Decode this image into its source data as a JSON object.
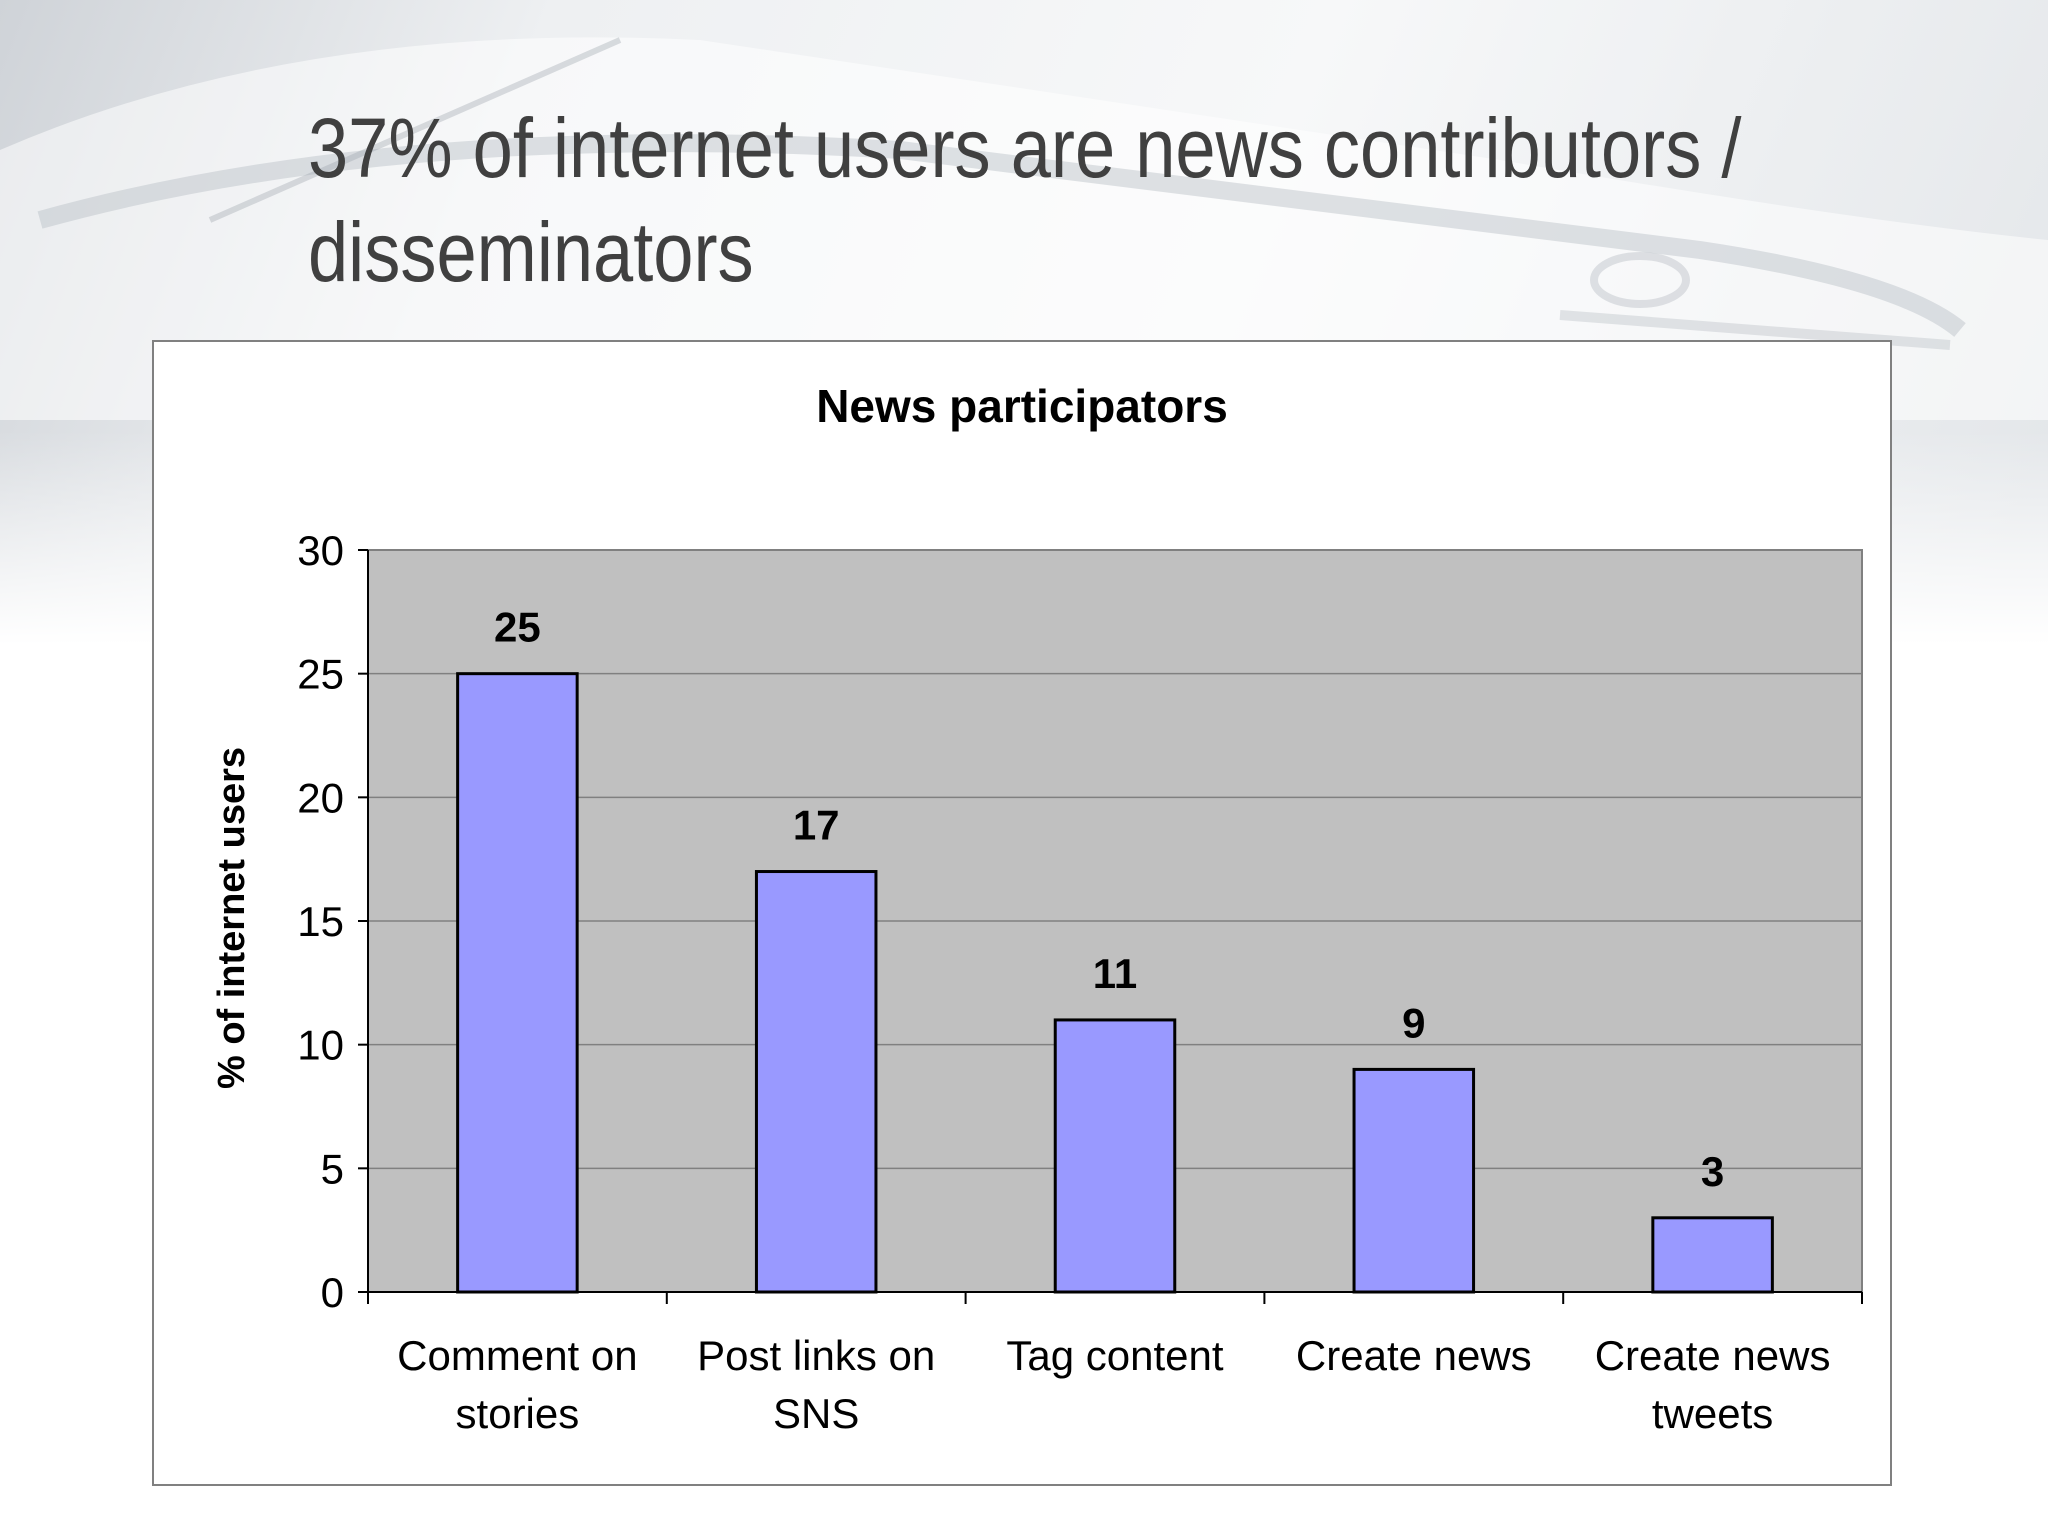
{
  "slide": {
    "title_line1": "37% of internet users are news contributors /",
    "title_line2": "disseminators"
  },
  "chart_data": {
    "type": "bar",
    "title": "News participators",
    "xlabel": "",
    "ylabel": "% of internet users",
    "categories": [
      [
        "Comment on",
        "stories"
      ],
      [
        "Post links on",
        "SNS"
      ],
      [
        "Tag content"
      ],
      [
        "Create news"
      ],
      [
        "Create news",
        "tweets"
      ]
    ],
    "values": [
      25,
      17,
      11,
      9,
      3
    ],
    "data_labels": [
      "25",
      "17",
      "11",
      "9",
      "3"
    ],
    "ylim": [
      0,
      30
    ],
    "yticks": [
      0,
      5,
      10,
      15,
      20,
      25,
      30
    ],
    "grid": true,
    "legend": "none",
    "colors": {
      "bar_fill": "#9999FF",
      "bar_stroke": "#000000",
      "plot_background": "#C0C0C0",
      "gridline": "#808080",
      "chart_background": "#FFFFFF"
    }
  }
}
